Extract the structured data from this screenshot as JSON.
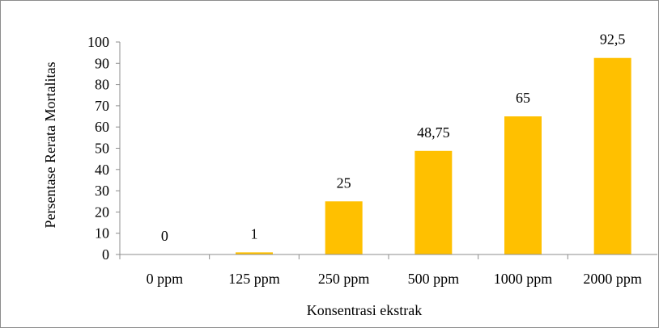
{
  "chart_data": {
    "type": "bar",
    "title": "",
    "xlabel": "Konsentrasi ekstrak",
    "ylabel": "Persentase Rerata Mortalitas",
    "categories": [
      "0 ppm",
      "125 ppm",
      "250 ppm",
      "500 ppm",
      "1000 ppm",
      "2000 ppm"
    ],
    "values": [
      0,
      1,
      25,
      48.75,
      65,
      92.5
    ],
    "data_labels": [
      "0",
      "1",
      "25",
      "48,75",
      "65",
      "92,5"
    ],
    "y_ticks": [
      "0",
      "10",
      "20",
      "30",
      "40",
      "50",
      "60",
      "70",
      "80",
      "90",
      "100"
    ],
    "ylim": [
      0,
      100
    ],
    "grid": false,
    "legend": "none",
    "bar_color": "#FFC000",
    "axis_color": "#8c8c8c"
  }
}
